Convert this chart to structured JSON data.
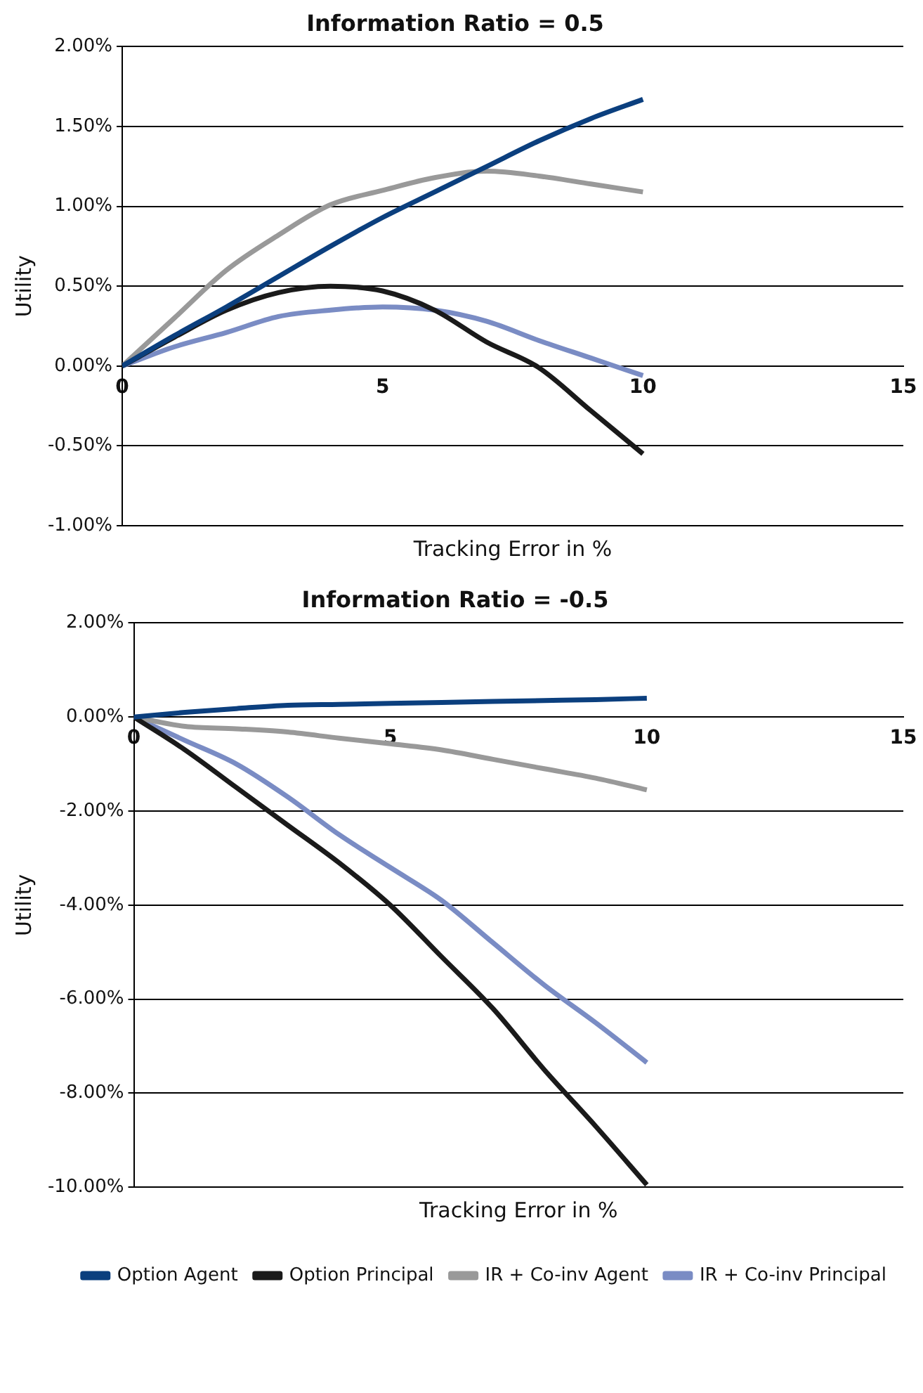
{
  "chart_data": [
    {
      "type": "line",
      "title": "Information Ratio = 0.5",
      "xlabel": "Tracking Error in %",
      "ylabel": "Utility",
      "xlim": [
        0,
        15
      ],
      "xticks": [
        0,
        5,
        10,
        15
      ],
      "ylim": [
        -1,
        2
      ],
      "yticks": [
        {
          "value": -1,
          "label": "-1.00%"
        },
        {
          "value": -0.5,
          "label": "-0.50%"
        },
        {
          "value": 0,
          "label": "0.00%"
        },
        {
          "value": 0.5,
          "label": "0.50%"
        },
        {
          "value": 1,
          "label": "1.00%"
        },
        {
          "value": 1.5,
          "label": "1.50%"
        },
        {
          "value": 2,
          "label": "2.00%"
        }
      ],
      "grid": "y",
      "legend": false,
      "marker": "none",
      "x": [
        0,
        1,
        2,
        3,
        4,
        5,
        6,
        7,
        8,
        9,
        10
      ],
      "series": [
        {
          "color": "#0b3f7e",
          "values": [
            0,
            0.19,
            0.37,
            0.56,
            0.75,
            0.93,
            1.09,
            1.25,
            1.41,
            1.55,
            1.67
          ]
        },
        {
          "color": "#999999",
          "values": [
            0,
            0.3,
            0.6,
            0.82,
            1.01,
            1.1,
            1.18,
            1.22,
            1.19,
            1.14,
            1.09
          ]
        },
        {
          "color": "#1a1a1a",
          "values": [
            0,
            0.18,
            0.35,
            0.46,
            0.5,
            0.47,
            0.35,
            0.15,
            -0.01,
            -0.28,
            -0.55
          ]
        },
        {
          "color": "#7a8cc4",
          "values": [
            0,
            0.12,
            0.21,
            0.31,
            0.35,
            0.37,
            0.35,
            0.28,
            0.16,
            0.05,
            -0.06
          ]
        }
      ]
    },
    {
      "type": "line",
      "title": "Information Ratio = -0.5",
      "xlabel": "Tracking Error in %",
      "ylabel": "Utility",
      "xlim": [
        0,
        15
      ],
      "xticks": [
        0,
        5,
        10,
        15
      ],
      "ylim": [
        -10,
        2
      ],
      "yticks": [
        {
          "value": -10,
          "label": "-10.00%"
        },
        {
          "value": -8,
          "label": "-8.00%"
        },
        {
          "value": -6,
          "label": "-6.00%"
        },
        {
          "value": -4,
          "label": "-4.00%"
        },
        {
          "value": -2,
          "label": "-2.00%"
        },
        {
          "value": 0,
          "label": "0.00%"
        },
        {
          "value": 2,
          "label": "2.00%"
        }
      ],
      "grid": "y",
      "legend": "bottom right",
      "marker": "none",
      "x": [
        0,
        1,
        2,
        3,
        4,
        5,
        6,
        7,
        8,
        9,
        10
      ],
      "series": [
        {
          "name": "Option Agent",
          "color": "#0b3f7e",
          "values": [
            0,
            0.1,
            0.18,
            0.25,
            0.27,
            0.29,
            0.31,
            0.33,
            0.35,
            0.37,
            0.4
          ]
        },
        {
          "name": "Option Principal",
          "color": "#1a1a1a",
          "values": [
            0,
            -0.7,
            -1.5,
            -2.3,
            -3.1,
            -4.0,
            -5.1,
            -6.2,
            -7.5,
            -8.7,
            -9.95
          ]
        },
        {
          "name": "IR + Co-inv Agent",
          "color": "#999999",
          "values": [
            0,
            -0.2,
            -0.25,
            -0.32,
            -0.45,
            -0.57,
            -0.7,
            -0.9,
            -1.1,
            -1.3,
            -1.55
          ]
        },
        {
          "name": "IR + Co-inv Principal",
          "color": "#7a8cc4",
          "values": [
            0,
            -0.5,
            -1.0,
            -1.7,
            -2.5,
            -3.2,
            -3.9,
            -4.8,
            -5.7,
            -6.5,
            -7.35
          ]
        }
      ]
    }
  ]
}
